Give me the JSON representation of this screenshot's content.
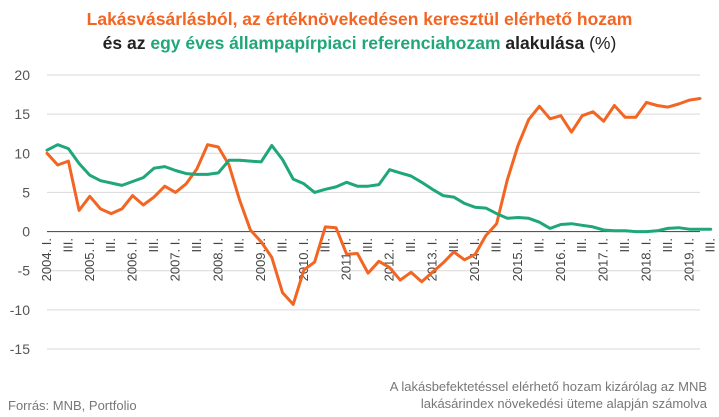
{
  "header": {
    "title_line1": "Lakásvásárlásból, az értéknövekedésen keresztül elérhető hozam",
    "title_line2_prefix": "és az",
    "title_line2_green": "egy éves állampapírpiaci referenciahozam",
    "title_line2_suffix": "alakulása",
    "unit": "(%)"
  },
  "footer": {
    "source": "Forrás: MNB, Portfolio",
    "note_line1": "A lakásbefektetéssel elérhető hozam kizárólag az MNB",
    "note_line2": "lakásárindex növekedési üteme alapján számolva"
  },
  "colors": {
    "orange": "#f26522",
    "green": "#1fa67a",
    "grid": "#d9d9d9",
    "axis": "#555555"
  },
  "chart_data": {
    "type": "line",
    "ylim": [
      -15,
      20
    ],
    "yticks": [
      -15,
      -10,
      -5,
      0,
      5,
      10,
      15,
      20
    ],
    "grid": true,
    "x_tick_labels": [
      "2004. I.",
      "III.",
      "2005. I.",
      "III.",
      "2006. I.",
      "III.",
      "2007. I.",
      "III.",
      "2008. I.",
      "III.",
      "2009. I.",
      "III.",
      "2010. I.",
      "III.",
      "2011. I.",
      "III.",
      "2012. I.",
      "III.",
      "2013. I.",
      "III.",
      "2014. I.",
      "III.",
      "2015. I.",
      "III.",
      "2016. I.",
      "III.",
      "2017. I.",
      "III.",
      "2018. I.",
      "III.",
      "2019. I.",
      "III."
    ],
    "series": [
      {
        "color": "#f26522",
        "values": [
          10.0,
          8.5,
          9.0,
          2.7,
          4.5,
          2.9,
          2.3,
          2.9,
          4.6,
          3.4,
          4.4,
          5.8,
          5.0,
          6.1,
          8.0,
          11.1,
          10.8,
          8.5,
          4.0,
          0.2,
          -1.3,
          -3.3,
          -7.8,
          -9.3,
          -4.9,
          -3.9,
          0.6,
          0.5,
          -2.9,
          -2.8,
          -5.3,
          -3.8,
          -4.6,
          -6.2,
          -5.2,
          -6.4,
          -5.2,
          -4.0,
          -2.6,
          -3.6,
          -2.9,
          -0.5,
          1.0,
          6.6,
          11.0,
          14.3,
          16.0,
          14.4,
          14.8,
          12.7,
          14.8,
          15.3,
          14.1,
          16.1,
          14.6,
          14.6,
          16.5,
          16.1,
          15.9,
          16.3,
          16.8,
          17.0
        ]
      },
      {
        "color": "#1fa67a",
        "values": [
          10.4,
          11.1,
          10.6,
          8.7,
          7.2,
          6.5,
          6.2,
          5.9,
          6.4,
          6.9,
          8.1,
          8.3,
          7.8,
          7.4,
          7.3,
          7.3,
          7.5,
          9.1,
          9.1,
          9.0,
          8.9,
          11.0,
          9.2,
          6.7,
          6.1,
          5.0,
          5.4,
          5.7,
          6.3,
          5.8,
          5.8,
          6.0,
          7.9,
          7.5,
          7.1,
          6.3,
          5.4,
          4.6,
          4.4,
          3.6,
          3.1,
          3.0,
          2.3,
          1.7,
          1.8,
          1.7,
          1.2,
          0.4,
          0.9,
          1.0,
          0.8,
          0.6,
          0.2,
          0.1,
          0.1,
          0.0,
          0.0,
          0.1,
          0.4,
          0.5,
          0.3,
          0.3,
          0.3
        ]
      }
    ]
  }
}
